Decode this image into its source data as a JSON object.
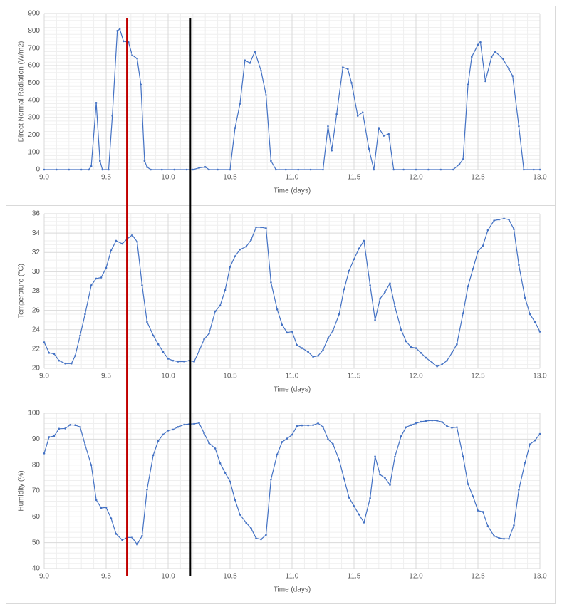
{
  "chart_data": [
    {
      "type": "line",
      "color": "#4472c4",
      "xlabel": "Time (days)",
      "ylabel": "Direct Normal Radiation (W/m2)",
      "xlim": [
        9,
        13
      ],
      "xticks": [
        {
          "value": 9,
          "label": "9.0"
        },
        9.5,
        {
          "value": 10,
          "label": "10.0"
        },
        10.5,
        {
          "value": 11,
          "label": "11.0"
        },
        11.5,
        {
          "value": 12,
          "label": "12.0"
        },
        12.5,
        {
          "value": 13,
          "label": "13.0"
        }
      ],
      "ylim": [
        0,
        900
      ],
      "yticks": [
        0,
        100,
        200,
        300,
        400,
        500,
        600,
        700,
        800,
        900
      ],
      "grid": true,
      "x": [
        9.0,
        9.1,
        9.2,
        9.3,
        9.36,
        9.38,
        9.42,
        9.45,
        9.47,
        9.52,
        9.55,
        9.59,
        9.61,
        9.64,
        9.68,
        9.71,
        9.75,
        9.78,
        9.81,
        9.83,
        9.86,
        9.95,
        10.05,
        10.15,
        10.2,
        10.25,
        10.3,
        10.33,
        10.4,
        10.5,
        10.54,
        10.58,
        10.62,
        10.66,
        10.7,
        10.75,
        10.79,
        10.83,
        10.87,
        10.95,
        11.05,
        11.15,
        11.25,
        11.29,
        11.32,
        11.36,
        11.41,
        11.45,
        11.48,
        11.53,
        11.57,
        11.62,
        11.66,
        11.7,
        11.74,
        11.78,
        11.82,
        11.9,
        12.0,
        12.1,
        12.2,
        12.3,
        12.35,
        12.38,
        12.42,
        12.45,
        12.5,
        12.52,
        12.56,
        12.61,
        12.64,
        12.7,
        12.75,
        12.78,
        12.83,
        12.87,
        12.95,
        13.0
      ],
      "values": [
        0,
        0,
        0,
        0,
        0,
        20,
        385,
        50,
        0,
        0,
        310,
        800,
        810,
        740,
        735,
        660,
        640,
        490,
        50,
        15,
        0,
        0,
        0,
        0,
        0,
        10,
        15,
        0,
        0,
        0,
        240,
        380,
        630,
        615,
        680,
        570,
        430,
        50,
        0,
        0,
        0,
        0,
        0,
        250,
        110,
        320,
        590,
        580,
        500,
        310,
        330,
        120,
        0,
        240,
        195,
        205,
        0,
        0,
        0,
        0,
        0,
        0,
        30,
        60,
        490,
        650,
        720,
        735,
        510,
        650,
        680,
        640,
        580,
        540,
        250,
        0,
        0,
        0
      ]
    },
    {
      "type": "line",
      "color": "#4472c4",
      "xlabel": "Time (days)",
      "ylabel": "Temperature (°C)",
      "xlim": [
        9,
        13
      ],
      "xticks": [
        {
          "value": 9,
          "label": "9.0"
        },
        9.5,
        {
          "value": 10,
          "label": "10.0"
        },
        10.5,
        {
          "value": 11,
          "label": "11.0"
        },
        11.5,
        {
          "value": 12,
          "label": "12.0"
        },
        12.5,
        {
          "value": 13,
          "label": "13.0"
        }
      ],
      "ylim": [
        20,
        36
      ],
      "yticks": [
        20,
        22,
        24,
        26,
        28,
        30,
        32,
        34,
        36
      ],
      "grid": true,
      "x": [
        9.0,
        9.04,
        9.08,
        9.12,
        9.17,
        9.22,
        9.25,
        9.29,
        9.33,
        9.38,
        9.42,
        9.46,
        9.5,
        9.54,
        9.58,
        9.63,
        9.67,
        9.71,
        9.75,
        9.79,
        9.83,
        9.88,
        9.92,
        9.96,
        10.0,
        10.04,
        10.08,
        10.13,
        10.17,
        10.21,
        10.25,
        10.29,
        10.33,
        10.38,
        10.42,
        10.46,
        10.5,
        10.54,
        10.58,
        10.63,
        10.67,
        10.71,
        10.75,
        10.79,
        10.83,
        10.88,
        10.92,
        10.96,
        11.0,
        11.04,
        11.08,
        11.13,
        11.17,
        11.21,
        11.25,
        11.29,
        11.33,
        11.38,
        11.42,
        11.46,
        11.5,
        11.54,
        11.58,
        11.63,
        11.67,
        11.71,
        11.75,
        11.79,
        11.83,
        11.88,
        11.92,
        11.96,
        12.0,
        12.04,
        12.08,
        12.13,
        12.17,
        12.21,
        12.25,
        12.29,
        12.33,
        12.38,
        12.42,
        12.46,
        12.5,
        12.54,
        12.58,
        12.63,
        12.67,
        12.71,
        12.75,
        12.79,
        12.83,
        12.88,
        12.92,
        12.96,
        13.0
      ],
      "values": [
        22.7,
        21.6,
        21.5,
        20.8,
        20.5,
        20.5,
        21.3,
        23.4,
        25.6,
        28.6,
        29.3,
        29.4,
        30.4,
        32.2,
        33.2,
        32.9,
        33.4,
        33.8,
        33.1,
        28.6,
        24.8,
        23.4,
        22.5,
        21.7,
        21.0,
        20.8,
        20.7,
        20.7,
        20.8,
        20.7,
        21.8,
        23.0,
        23.6,
        25.9,
        26.5,
        28.1,
        30.5,
        31.6,
        32.3,
        32.6,
        33.3,
        34.6,
        34.6,
        34.5,
        28.9,
        26.1,
        24.5,
        23.7,
        23.8,
        22.4,
        22.1,
        21.7,
        21.2,
        21.3,
        21.9,
        23.1,
        23.9,
        25.6,
        28.2,
        30.1,
        31.3,
        32.4,
        33.2,
        28.6,
        25.0,
        27.2,
        27.9,
        28.8,
        26.4,
        24.0,
        22.8,
        22.2,
        22.1,
        21.6,
        21.1,
        20.6,
        20.2,
        20.4,
        20.8,
        21.6,
        22.5,
        25.7,
        28.5,
        30.3,
        32.1,
        32.7,
        34.3,
        35.3,
        35.4,
        35.5,
        35.4,
        34.4,
        30.7,
        27.3,
        25.6,
        24.8,
        23.8
      ]
    },
    {
      "type": "line",
      "color": "#4472c4",
      "xlabel": "Time (days)",
      "ylabel": "Humidity (%)",
      "xlim": [
        9,
        13
      ],
      "xticks": [
        {
          "value": 9,
          "label": "9.0"
        },
        9.5,
        {
          "value": 10,
          "label": "10.0"
        },
        10.5,
        {
          "value": 11,
          "label": "11.0"
        },
        11.5,
        {
          "value": 12,
          "label": "12.0"
        },
        12.5,
        {
          "value": 13,
          "label": "13.0"
        }
      ],
      "ylim": [
        40,
        100
      ],
      "yticks": [
        40,
        50,
        60,
        70,
        80,
        90,
        100
      ],
      "grid": true,
      "x": [
        9.0,
        9.04,
        9.08,
        9.12,
        9.17,
        9.21,
        9.25,
        9.29,
        9.33,
        9.38,
        9.42,
        9.46,
        9.5,
        9.54,
        9.58,
        9.63,
        9.67,
        9.71,
        9.75,
        9.79,
        9.83,
        9.88,
        9.92,
        9.96,
        10.0,
        10.04,
        10.08,
        10.13,
        10.17,
        10.21,
        10.25,
        10.29,
        10.33,
        10.38,
        10.42,
        10.46,
        10.5,
        10.54,
        10.58,
        10.63,
        10.67,
        10.71,
        10.75,
        10.79,
        10.83,
        10.88,
        10.92,
        10.96,
        11.0,
        11.04,
        11.08,
        11.13,
        11.17,
        11.21,
        11.25,
        11.29,
        11.33,
        11.38,
        11.42,
        11.46,
        11.5,
        11.54,
        11.58,
        11.63,
        11.67,
        11.71,
        11.75,
        11.79,
        11.83,
        11.88,
        11.92,
        11.96,
        12.0,
        12.04,
        12.08,
        12.13,
        12.17,
        12.21,
        12.25,
        12.29,
        12.33,
        12.38,
        12.42,
        12.46,
        12.5,
        12.54,
        12.58,
        12.63,
        12.67,
        12.71,
        12.75,
        12.79,
        12.83,
        12.88,
        12.92,
        12.96,
        13.0
      ],
      "values": [
        84.5,
        90.8,
        91.2,
        94.0,
        94.1,
        95.5,
        95.4,
        94.7,
        87.8,
        80.0,
        66.5,
        63.4,
        63.6,
        59.4,
        53.4,
        51.0,
        52.0,
        52.0,
        49.3,
        52.6,
        70.5,
        83.8,
        89.3,
        91.8,
        93.3,
        93.7,
        94.7,
        95.6,
        95.8,
        95.9,
        96.2,
        92.3,
        88.5,
        86.4,
        80.7,
        77.0,
        73.6,
        66.5,
        60.8,
        57.7,
        55.5,
        51.7,
        51.3,
        53.0,
        74.4,
        84.1,
        88.9,
        90.2,
        91.7,
        95.0,
        95.3,
        95.3,
        95.4,
        96.1,
        94.7,
        90.0,
        88.1,
        82.0,
        74.6,
        67.4,
        64.1,
        60.9,
        57.8,
        67.2,
        83.3,
        76.3,
        75.0,
        72.3,
        83.2,
        91.1,
        94.6,
        95.4,
        96.1,
        96.7,
        97.0,
        97.2,
        97.1,
        96.6,
        95.0,
        94.4,
        94.6,
        83.3,
        72.6,
        67.9,
        62.4,
        61.9,
        56.4,
        52.6,
        51.8,
        51.5,
        51.5,
        56.7,
        70.4,
        80.9,
        88.0,
        89.5,
        92.0
      ]
    }
  ],
  "vertical_lines": [
    {
      "x": 9.667,
      "color": "#c00000"
    },
    {
      "x": 10.18,
      "color": "#000000"
    }
  ]
}
